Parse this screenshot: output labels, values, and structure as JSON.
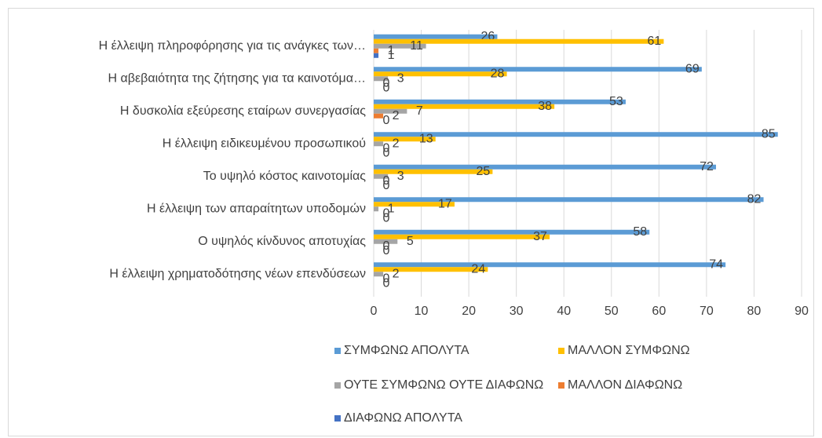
{
  "chart_data": {
    "type": "barh",
    "categories": [
      "Η έλλειψη πληροφόρησης για τις ανάγκες των…",
      "Η αβεβαιότητα της ζήτησης για τα καινοτόμα…",
      "Η δυσκολία εξεύρεσης εταίρων συνεργασίας",
      "Η έλλειψη ειδικευμένου προσωπικού",
      "Το υψηλό κόστος καινοτομίας",
      "Η έλλειψη των απαραίτητων υποδομών",
      "Ο υψηλός κίνδυνος αποτυχίας",
      "Η έλλειψη χρηματοδότησης νέων επενδύσεων"
    ],
    "series": [
      {
        "name": "ΣΥΜΦΩΝΩ ΑΠΟΛΥΤΑ",
        "color": "#5b9bd5",
        "values": [
          26,
          69,
          53,
          85,
          72,
          82,
          58,
          74
        ]
      },
      {
        "name": "ΜΑΛΛΟΝ ΣΥΜΦΩΝΩ",
        "color": "#ffc000",
        "values": [
          61,
          28,
          38,
          13,
          25,
          17,
          37,
          24
        ]
      },
      {
        "name": "ΟΥΤΕ ΣΥΜΦΩΝΩ ΟΥΤΕ ΔΙΑΦΩΝΩ",
        "color": "#a5a5a5",
        "values": [
          11,
          3,
          7,
          2,
          3,
          1,
          5,
          2
        ]
      },
      {
        "name": "ΜΑΛΛΟΝ ΔΙΑΦΩΝΩ",
        "color": "#ed7d31",
        "values": [
          1,
          0,
          2,
          0,
          0,
          0,
          0,
          0
        ]
      },
      {
        "name": "ΔΙΑΦΩΝΩ ΑΠΟΛΥΤΑ",
        "color": "#4472c4",
        "values": [
          1,
          0,
          0,
          0,
          0,
          0,
          0,
          0
        ]
      }
    ],
    "xlim": [
      0,
      90
    ],
    "xticks": [
      0,
      10,
      20,
      30,
      40,
      50,
      60,
      70,
      80,
      90
    ],
    "grid": true
  }
}
